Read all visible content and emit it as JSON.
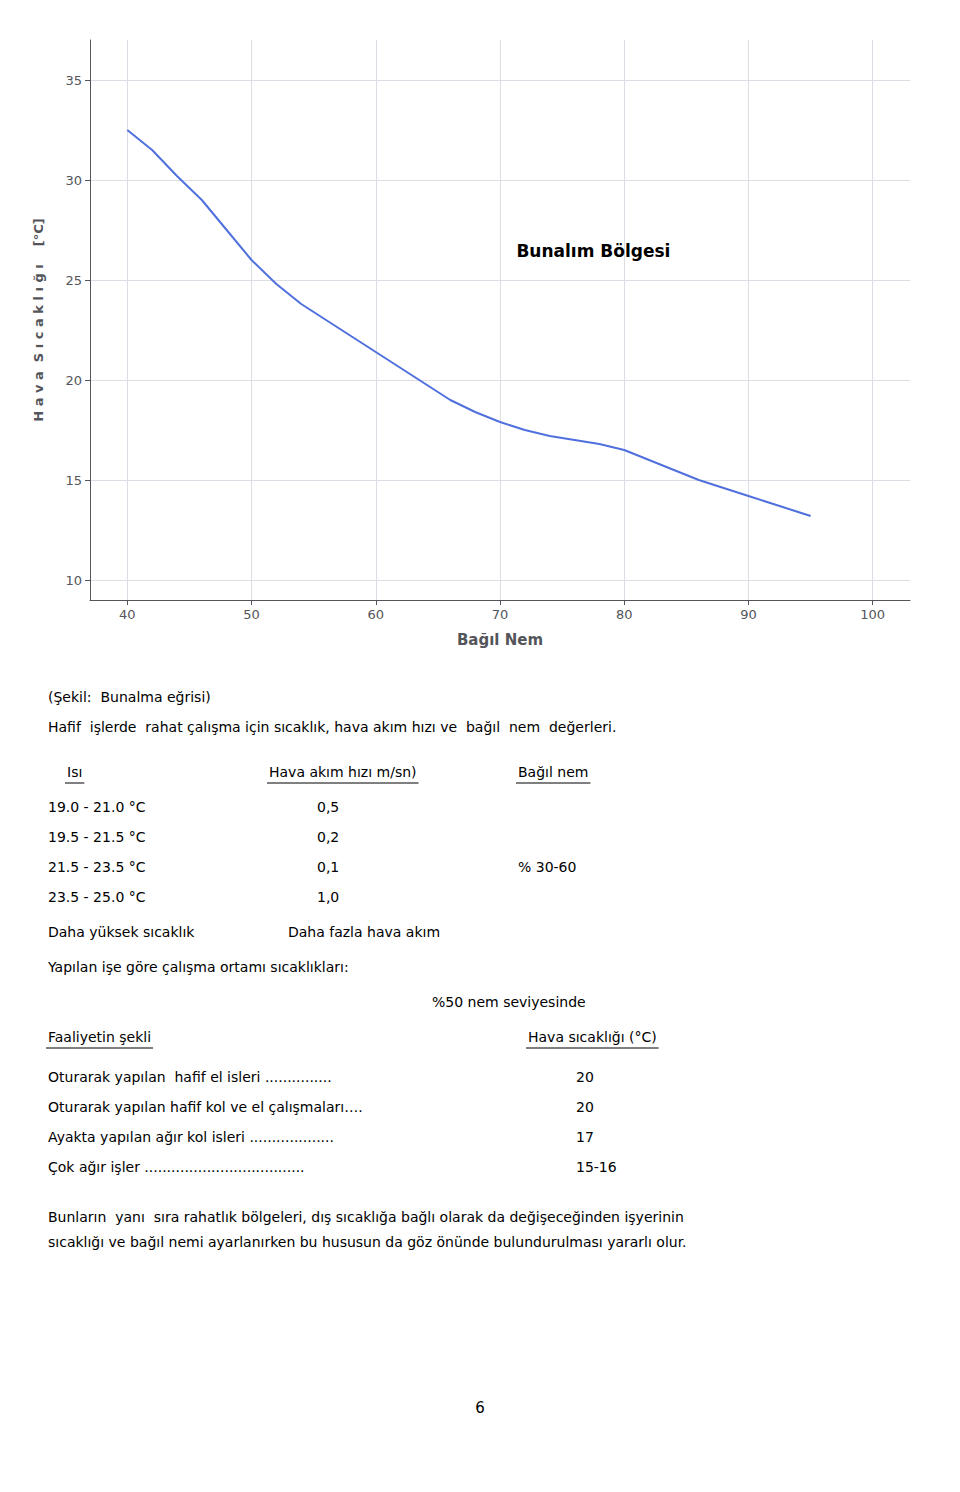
{
  "chart_data": {
    "type": "line",
    "x": [
      40,
      42,
      44,
      46,
      48,
      50,
      52,
      54,
      56,
      58,
      60,
      62,
      64,
      66,
      68,
      70,
      72,
      74,
      76,
      78,
      80,
      82,
      84,
      86,
      88,
      90,
      92,
      94,
      95
    ],
    "values": [
      32.5,
      31.5,
      30.2,
      29.0,
      27.5,
      26.0,
      24.8,
      23.8,
      23.0,
      22.2,
      21.4,
      20.6,
      19.8,
      19.0,
      18.4,
      17.9,
      17.5,
      17.2,
      17.0,
      16.8,
      16.5,
      16.0,
      15.5,
      15.0,
      14.6,
      14.2,
      13.8,
      13.4,
      13.2
    ],
    "xlim": [
      37,
      103
    ],
    "ylim": [
      9,
      37
    ],
    "xticks": [
      40,
      50,
      60,
      70,
      80,
      90,
      100
    ],
    "yticks": [
      10,
      15,
      20,
      25,
      30,
      35
    ],
    "xlabel": "Bağıl Nem",
    "ylabel": "H a v a  S ı c a k l ı ğ ı    [°C]",
    "grid": true,
    "annotations": [
      "Bunalım Bölgesi",
      "(Şekil:  Bunalma eğrisi)",
      "Hafif  işlerde  rahat çalışma için sıcaklık, hava akım hızı ve  bağıl  nem  değerleri.",
      "Isı",
      "Hava akım hızı m/sn)",
      "Bağıl nem",
      "19.0 - 21.0 °C",
      "0,5",
      "19.5 - 21.5 °C",
      "0,2",
      "21.5 - 23.5 °C",
      "0,1",
      "% 30-60",
      "23.5 - 25.0 °C",
      "1,0",
      "Daha yüksek sıcaklık",
      "Daha fazla hava akım",
      "Yapılan işe göre çalışma ortamı sıcaklıkları:",
      "%50 nem seviyesinde",
      "Faaliyetin şekli",
      "Hava sıcaklığı (°C)",
      "Oturarak yapılan  hafif el isleri ...............",
      "20",
      "Oturarak yapılan hafif kol ve el çalışmaları….",
      "20",
      "Ayakta yapılan ağır kol isleri ...................",
      "17",
      "Çok ağır işler ....................................",
      "15-16",
      "Bunların  yanı  sıra rahatlık bölgeleri, dış sıcaklığa bağlı olarak da değişeceğinden işyerinin",
      "sıcaklığı ve bağıl nemi ayarlanırken bu hususun da göz önünde bulundurulması yararlı olur.",
      "6"
    ]
  }
}
